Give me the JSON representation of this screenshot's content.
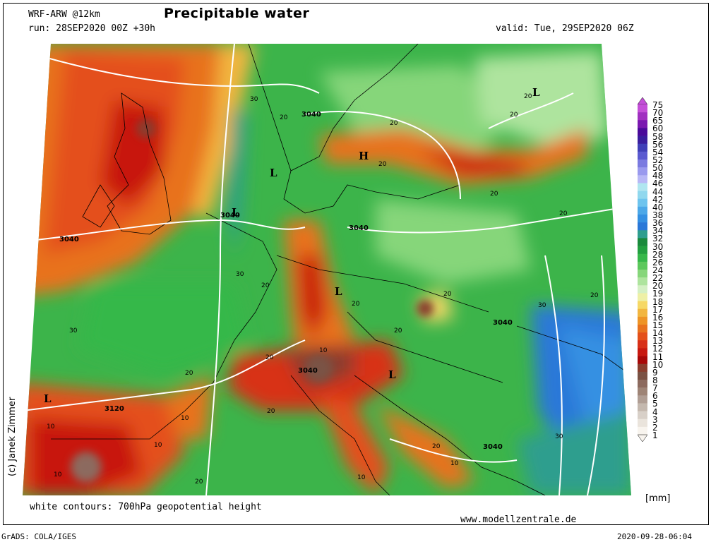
{
  "header": {
    "model": "WRF-ARW @12km",
    "title": "Precipitable water",
    "run": "run: 28SEP2020 00Z +30h",
    "valid": "valid: Tue, 29SEP2020 06Z"
  },
  "footer": {
    "contours_note": "white contours: 700hPa geopotential height",
    "website": "www.modellzentrale.de",
    "grads": "GrADS: COLA/IGES",
    "timestamp": "2020-09-28-06:04"
  },
  "copyright": "(c) Janek Zimmer",
  "legend": {
    "unit": "[mm]",
    "levels": [
      "75",
      "70",
      "65",
      "60",
      "58",
      "56",
      "54",
      "52",
      "50",
      "48",
      "46",
      "44",
      "42",
      "40",
      "38",
      "36",
      "34",
      "32",
      "30",
      "28",
      "26",
      "24",
      "22",
      "20",
      "19",
      "18",
      "17",
      "16",
      "15",
      "14",
      "13",
      "12",
      "11",
      "10",
      "9",
      "8",
      "7",
      "6",
      "5",
      "4",
      "3",
      "2",
      "1"
    ],
    "colors": [
      "#c44fd8",
      "#a030c0",
      "#7a18b0",
      "#4a0a9a",
      "#3a1e9e",
      "#4040b8",
      "#5a5ad0",
      "#7a7ae0",
      "#9a9aee",
      "#b8b8f6",
      "#b0e6f0",
      "#90d8ee",
      "#6ec4ee",
      "#4ca8e8",
      "#3490e2",
      "#2a78d8",
      "#2e9e8e",
      "#1a8a3c",
      "#22a040",
      "#36b84a",
      "#5cc85c",
      "#86d67a",
      "#aee49e",
      "#d4f0c4",
      "#eef0a6",
      "#f6d866",
      "#f2b640",
      "#ee9426",
      "#e8721e",
      "#e4501a",
      "#d83018",
      "#c81810",
      "#a80808",
      "#8a3e2e",
      "#7a5244",
      "#8c6a5e",
      "#9e8476",
      "#b09e94",
      "#c4b8ae",
      "#d8d0c8",
      "#eae4dc",
      "#f8f4ee"
    ]
  },
  "map": {
    "pressure_systems": [
      "L",
      "L",
      "H",
      "L",
      "L",
      "L",
      "L"
    ],
    "contour_labels": [
      "3040",
      "3040",
      "3040",
      "3040",
      "3040",
      "3040",
      "3040",
      "3120",
      "30",
      "30",
      "30",
      "30",
      "30",
      "20",
      "20",
      "20",
      "20",
      "20",
      "20",
      "20",
      "20",
      "20",
      "20",
      "20",
      "20",
      "20",
      "20",
      "20",
      "20",
      "20",
      "10",
      "10",
      "10",
      "10",
      "10",
      "10",
      "10"
    ]
  }
}
